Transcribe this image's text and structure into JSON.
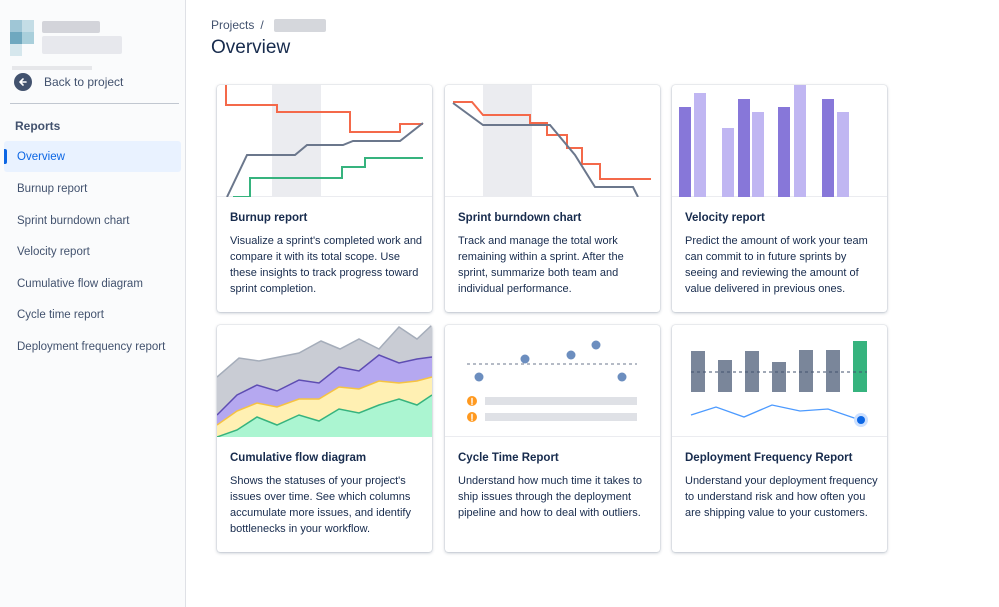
{
  "sidebar": {
    "back_label": "Back to project",
    "section_heading": "Reports",
    "items": [
      {
        "label": "Overview",
        "active": true
      },
      {
        "label": "Burnup report",
        "active": false
      },
      {
        "label": "Sprint burndown chart",
        "active": false
      },
      {
        "label": "Velocity report",
        "active": false
      },
      {
        "label": "Cumulative flow diagram",
        "active": false
      },
      {
        "label": "Cycle time report",
        "active": false
      },
      {
        "label": "Deployment frequency report",
        "active": false
      }
    ]
  },
  "header": {
    "breadcrumb_root": "Projects",
    "breadcrumb_separator": "/",
    "title": "Overview"
  },
  "cards": [
    {
      "title": "Burnup report",
      "description": "Visualize a sprint's completed work and compare it with its total scope. Use these insights to track progress toward sprint completion.",
      "icon": "burnup-illustration"
    },
    {
      "title": "Sprint burndown chart",
      "description": "Track and manage the total work remaining within a sprint. After the sprint, summarize both team and individual performance.",
      "icon": "burndown-illustration"
    },
    {
      "title": "Velocity report",
      "description": "Predict the amount of work your team can commit to in future sprints by seeing and reviewing the amount of value delivered in previous ones.",
      "icon": "velocity-illustration"
    },
    {
      "title": "Cumulative flow diagram",
      "description": "Shows the statuses of your project's issues over time. See which columns accumulate more issues, and identify bottlenecks in your workflow.",
      "icon": "cumulative-flow-illustration"
    },
    {
      "title": "Cycle Time Report",
      "description": "Understand how much time it takes to ship issues through the deployment pipeline and how to deal with outliers.",
      "icon": "cycle-time-illustration"
    },
    {
      "title": "Deployment Frequency Report",
      "description": "Understand your deployment frequency to understand risk and how often you are shipping value to your customers.",
      "icon": "deployment-frequency-illustration"
    }
  ],
  "colors": {
    "accent": "#0c66e4",
    "orange": "#f4694a",
    "green": "#36b37e",
    "slate": "#6b778c",
    "purple_dark": "#8777d9",
    "purple_light": "#c0b6f2",
    "yellow": "#f6c342",
    "teal_green": "#57d9a3",
    "dark_bar": "#7a869a"
  }
}
